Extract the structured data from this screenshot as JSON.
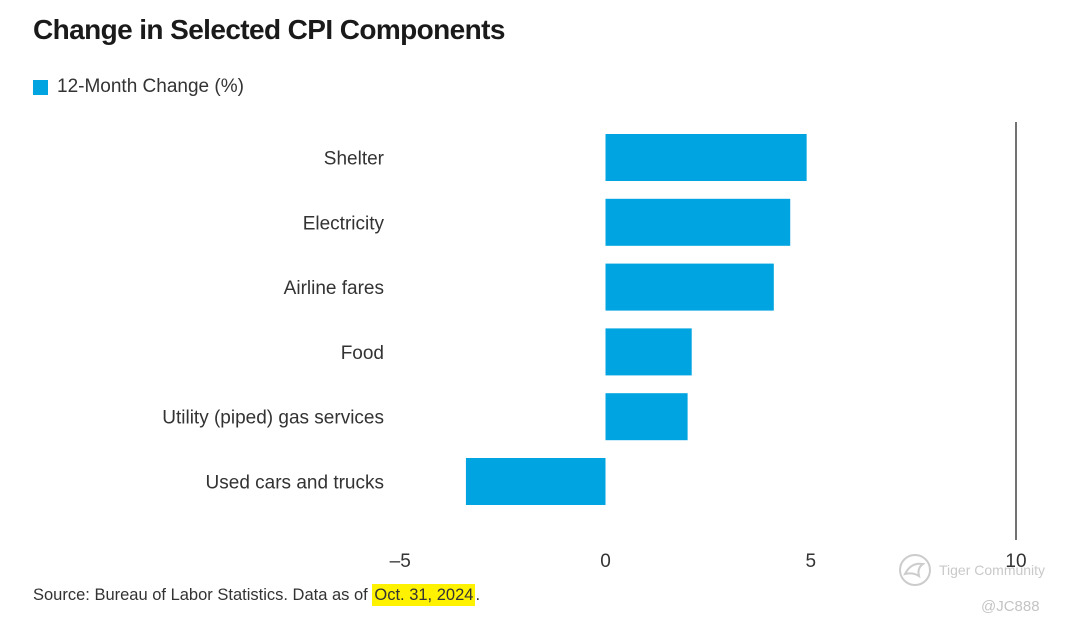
{
  "title": "Change in Selected CPI Components",
  "legend": {
    "label": "12-Month Change (%)",
    "color": "#00a4e0"
  },
  "source": {
    "prefix": "Source: Bureau of Labor Statistics. Data as of ",
    "date": "Oct. 31, 2024",
    "suffix": "."
  },
  "watermark": {
    "brand": "Tiger Community",
    "handle": "@JC888"
  },
  "colors": {
    "bar": "#00a4e0",
    "axis": "#444444",
    "highlight": "#fff200"
  },
  "chart_data": {
    "type": "bar",
    "orientation": "horizontal",
    "title": "Change in Selected CPI Components",
    "xlabel": "",
    "ylabel": "",
    "categories": [
      "Shelter",
      "Electricity",
      "Airline fares",
      "Food",
      "Utility (piped) gas services",
      "Used cars and trucks"
    ],
    "series": [
      {
        "name": "12-Month Change (%)",
        "values": [
          4.9,
          4.5,
          4.1,
          2.1,
          2.0,
          -3.4
        ]
      }
    ],
    "xlim": [
      -5,
      10
    ],
    "xticks": [
      -5,
      0,
      5,
      10
    ],
    "xtick_labels": [
      "–5",
      "0",
      "5",
      "10"
    ],
    "grid": false,
    "legend_position": "top-left"
  }
}
